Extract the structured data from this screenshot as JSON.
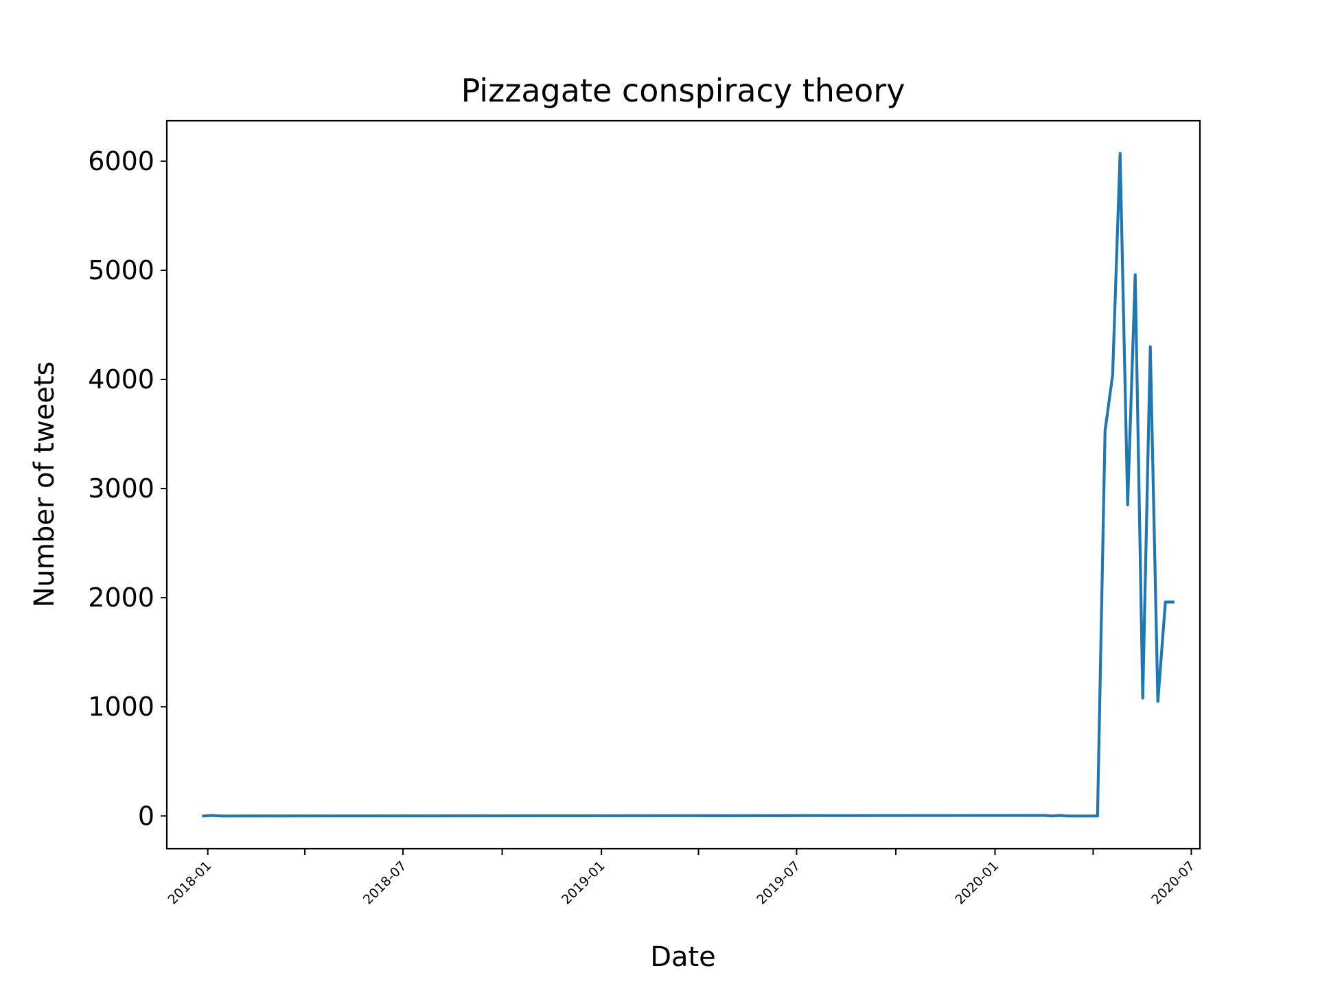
{
  "chart_data": {
    "type": "line",
    "title": "Pizzagate conspiracy theory",
    "xlabel": "Date",
    "ylabel": "Number of tweets",
    "xlim": [
      "2017-11-24",
      "2020-07-09"
    ],
    "ylim": [
      -300,
      6370
    ],
    "yticks": [
      0,
      1000,
      2000,
      3000,
      4000,
      5000,
      6000
    ],
    "xticks": [
      "2018-01",
      "2018-04",
      "2018-07",
      "2018-10",
      "2019-01",
      "2019-04",
      "2019-07",
      "2019-10",
      "2020-01",
      "2020-04",
      "2020-07"
    ],
    "xtick_labels": [
      "2018-01",
      "",
      "2018-07",
      "",
      "2019-01",
      "",
      "2019-07",
      "",
      "2020-01",
      "",
      "2020-07"
    ],
    "grid": false,
    "color": "#1f77b4",
    "series": [
      {
        "x": [
          "2017-12-28",
          "2018-01-04",
          "2018-01-14",
          "2020-02-16",
          "2020-02-23",
          "2020-03-01",
          "2020-03-08",
          "2020-03-15",
          "2020-03-22",
          "2020-03-29",
          "2020-04-05",
          "2020-04-12",
          "2020-04-19",
          "2020-04-26",
          "2020-05-03",
          "2020-05-10",
          "2020-05-17",
          "2020-05-24",
          "2020-05-31",
          "2020-06-07",
          "2020-06-14"
        ],
        "y": [
          0,
          5,
          0,
          5,
          0,
          5,
          0,
          0,
          0,
          0,
          0,
          3530,
          4040,
          6070,
          2850,
          4960,
          1080,
          4300,
          1050,
          1960,
          1960
        ]
      }
    ]
  }
}
